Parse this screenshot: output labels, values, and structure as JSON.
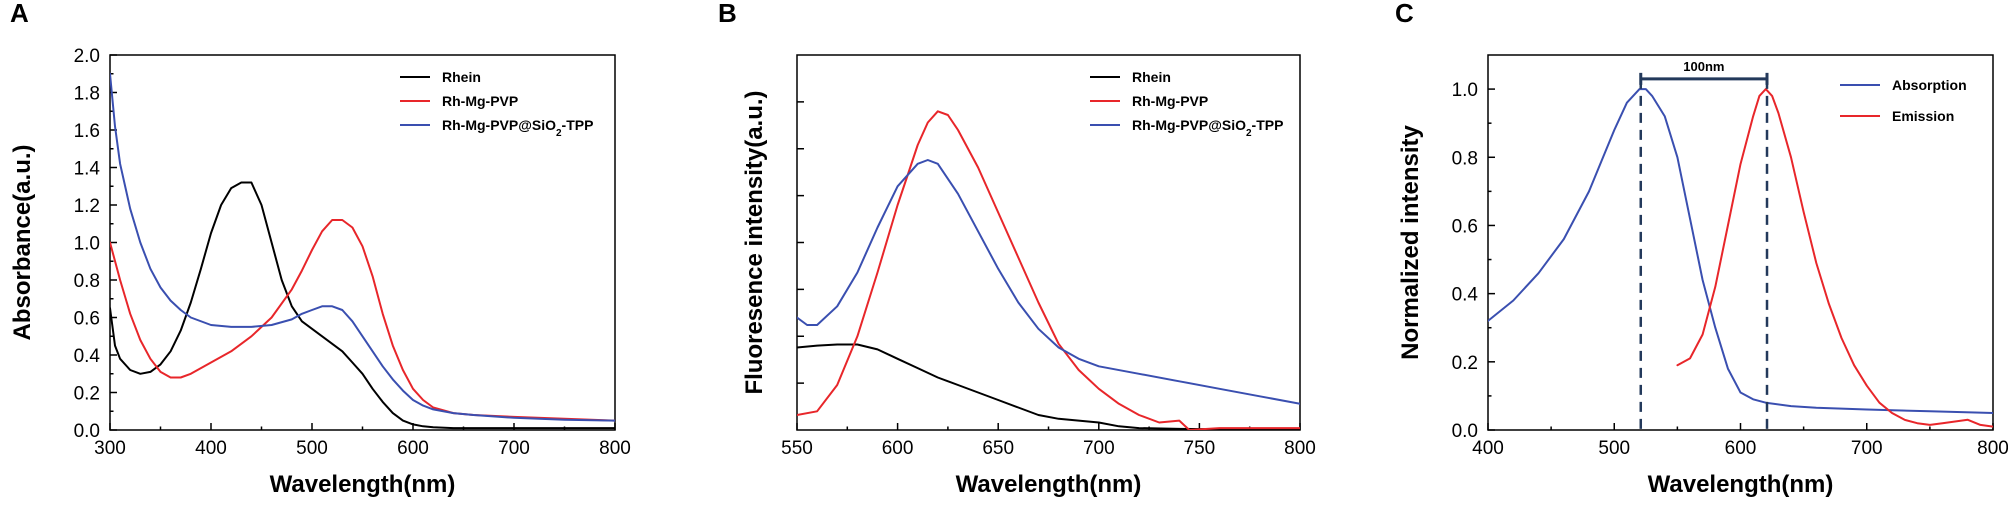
{
  "chart_data": [
    {
      "panel": "A",
      "type": "line",
      "title": "",
      "xlabel": "Wavelength(nm)",
      "ylabel": "Absorbance(a.u.)",
      "xlim": [
        300,
        800
      ],
      "ylim": [
        0,
        2.0
      ],
      "xticks": [
        300,
        400,
        500,
        600,
        700,
        800
      ],
      "yticks": [
        0.0,
        0.2,
        0.4,
        0.6,
        0.8,
        1.0,
        1.2,
        1.4,
        1.6,
        1.8,
        2.0
      ],
      "ytick_labels": [
        "0.0",
        "0.2",
        "0.4",
        "0.6",
        "0.8",
        "1.0",
        "1.2",
        "1.4",
        "1.6",
        "1.8",
        "2.0"
      ],
      "legend_position": "top-right",
      "series": [
        {
          "name": "Rhein",
          "label_parts": [
            "Rhein"
          ],
          "color": "#000000",
          "x": [
            300,
            305,
            310,
            320,
            330,
            340,
            350,
            360,
            370,
            380,
            390,
            400,
            410,
            420,
            430,
            440,
            450,
            460,
            470,
            480,
            490,
            500,
            510,
            520,
            530,
            540,
            550,
            560,
            570,
            580,
            590,
            600,
            610,
            620,
            640,
            660,
            700,
            750,
            800
          ],
          "y": [
            0.65,
            0.45,
            0.38,
            0.32,
            0.3,
            0.31,
            0.35,
            0.42,
            0.53,
            0.68,
            0.86,
            1.05,
            1.2,
            1.29,
            1.32,
            1.32,
            1.2,
            1.0,
            0.8,
            0.66,
            0.58,
            0.54,
            0.5,
            0.46,
            0.42,
            0.36,
            0.3,
            0.22,
            0.15,
            0.09,
            0.05,
            0.03,
            0.02,
            0.015,
            0.01,
            0.01,
            0.01,
            0.01,
            0.01
          ]
        },
        {
          "name": "Rh-Mg-PVP",
          "label_parts": [
            "Rh-Mg-PVP"
          ],
          "color": "#e8262a",
          "x": [
            300,
            310,
            320,
            330,
            340,
            350,
            360,
            370,
            380,
            400,
            420,
            440,
            460,
            480,
            490,
            500,
            510,
            520,
            530,
            540,
            550,
            560,
            570,
            580,
            590,
            600,
            610,
            620,
            640,
            660,
            700,
            750,
            800
          ],
          "y": [
            1.0,
            0.8,
            0.62,
            0.48,
            0.38,
            0.31,
            0.28,
            0.28,
            0.3,
            0.36,
            0.42,
            0.5,
            0.6,
            0.75,
            0.85,
            0.96,
            1.06,
            1.12,
            1.12,
            1.08,
            0.98,
            0.82,
            0.62,
            0.45,
            0.32,
            0.22,
            0.16,
            0.12,
            0.09,
            0.08,
            0.07,
            0.06,
            0.05
          ]
        },
        {
          "name": "Rh-Mg-PVP@SiO2-TPP",
          "label_parts": [
            "Rh-Mg-PVP@SiO",
            "2",
            "-TPP"
          ],
          "color": "#3a4fb0",
          "x": [
            300,
            305,
            310,
            320,
            330,
            340,
            350,
            360,
            370,
            380,
            400,
            420,
            440,
            460,
            480,
            490,
            500,
            510,
            520,
            530,
            540,
            550,
            560,
            570,
            580,
            590,
            600,
            610,
            620,
            640,
            660,
            700,
            750,
            800
          ],
          "y": [
            1.9,
            1.62,
            1.42,
            1.18,
            1.0,
            0.86,
            0.76,
            0.69,
            0.64,
            0.6,
            0.56,
            0.55,
            0.55,
            0.56,
            0.59,
            0.62,
            0.64,
            0.66,
            0.66,
            0.64,
            0.58,
            0.5,
            0.42,
            0.34,
            0.27,
            0.21,
            0.16,
            0.13,
            0.11,
            0.09,
            0.08,
            0.065,
            0.055,
            0.05
          ]
        }
      ]
    },
    {
      "panel": "B",
      "type": "line",
      "title": "",
      "xlabel": "Wavelength(nm)",
      "ylabel": "Fluoresence intensity(a.u.)",
      "xlim": [
        550,
        800
      ],
      "ylim": [
        0,
        1.0
      ],
      "xticks": [
        550,
        600,
        650,
        700,
        750,
        800
      ],
      "yticks_minor": [
        0.125,
        0.25,
        0.375,
        0.5,
        0.625,
        0.75,
        0.875
      ],
      "ytick_labels": [],
      "legend_position": "top-right",
      "series": [
        {
          "name": "Rhein",
          "label_parts": [
            "Rhein"
          ],
          "color": "#000000",
          "x": [
            550,
            560,
            570,
            580,
            590,
            600,
            610,
            620,
            630,
            640,
            650,
            660,
            670,
            680,
            690,
            700,
            710,
            720,
            740,
            760,
            800
          ],
          "y": [
            0.22,
            0.225,
            0.228,
            0.228,
            0.215,
            0.19,
            0.165,
            0.14,
            0.12,
            0.1,
            0.08,
            0.06,
            0.04,
            0.03,
            0.025,
            0.02,
            0.01,
            0.005,
            0.003,
            0.002,
            0.002
          ]
        },
        {
          "name": "Rh-Mg-PVP",
          "label_parts": [
            "Rh-Mg-PVP"
          ],
          "color": "#e8262a",
          "x": [
            550,
            560,
            570,
            580,
            590,
            600,
            605,
            610,
            615,
            620,
            625,
            630,
            640,
            650,
            660,
            670,
            680,
            690,
            700,
            710,
            720,
            730,
            740,
            745,
            760,
            800
          ],
          "y": [
            0.04,
            0.05,
            0.12,
            0.25,
            0.42,
            0.6,
            0.68,
            0.76,
            0.82,
            0.85,
            0.84,
            0.8,
            0.7,
            0.58,
            0.46,
            0.34,
            0.23,
            0.16,
            0.11,
            0.07,
            0.04,
            0.02,
            0.025,
            0.0,
            0.005,
            0.005
          ]
        },
        {
          "name": "Rh-Mg-PVP@SiO2-TPP",
          "label_parts": [
            "Rh-Mg-PVP@SiO",
            "2",
            "-TPP"
          ],
          "color": "#3a4fb0",
          "x": [
            550,
            555,
            560,
            570,
            580,
            590,
            600,
            610,
            615,
            620,
            630,
            640,
            650,
            660,
            670,
            680,
            690,
            700,
            720,
            740,
            760,
            780,
            800
          ],
          "y": [
            0.3,
            0.28,
            0.28,
            0.33,
            0.42,
            0.54,
            0.65,
            0.71,
            0.72,
            0.71,
            0.63,
            0.53,
            0.43,
            0.34,
            0.27,
            0.22,
            0.19,
            0.17,
            0.15,
            0.13,
            0.11,
            0.09,
            0.07
          ]
        }
      ]
    },
    {
      "panel": "C",
      "type": "line",
      "title": "",
      "xlabel": "Wavelength(nm)",
      "ylabel": "Normalized intensity",
      "xlim": [
        400,
        800
      ],
      "ylim": [
        0,
        1.1
      ],
      "xticks": [
        400,
        500,
        600,
        700,
        800
      ],
      "yticks": [
        0.0,
        0.2,
        0.4,
        0.6,
        0.8,
        1.0
      ],
      "ytick_labels": [
        "0.0",
        "0.2",
        "0.4",
        "0.6",
        "0.8",
        "1.0"
      ],
      "legend_position": "top-right",
      "annotation": {
        "text": "100nm",
        "x_start": 521,
        "x_end": 621,
        "y": 1.03
      },
      "series": [
        {
          "name": "Absorption",
          "label_parts": [
            "Absorption"
          ],
          "color": "#3a4fb0",
          "x": [
            400,
            420,
            440,
            460,
            480,
            490,
            500,
            510,
            520,
            525,
            530,
            540,
            550,
            560,
            570,
            580,
            590,
            600,
            610,
            620,
            640,
            660,
            700,
            750,
            800
          ],
          "y": [
            0.32,
            0.38,
            0.46,
            0.56,
            0.7,
            0.79,
            0.88,
            0.96,
            1.0,
            1.0,
            0.98,
            0.92,
            0.8,
            0.62,
            0.44,
            0.3,
            0.18,
            0.11,
            0.09,
            0.08,
            0.07,
            0.065,
            0.06,
            0.055,
            0.05
          ]
        },
        {
          "name": "Emission",
          "label_parts": [
            "Emission"
          ],
          "color": "#e8262a",
          "x": [
            550,
            560,
            570,
            580,
            590,
            600,
            610,
            615,
            620,
            625,
            630,
            640,
            650,
            660,
            670,
            680,
            690,
            700,
            710,
            720,
            730,
            740,
            750,
            760,
            770,
            780,
            790,
            800
          ],
          "y": [
            0.19,
            0.21,
            0.28,
            0.42,
            0.6,
            0.78,
            0.92,
            0.98,
            1.0,
            0.98,
            0.93,
            0.8,
            0.64,
            0.49,
            0.37,
            0.27,
            0.19,
            0.13,
            0.08,
            0.05,
            0.03,
            0.02,
            0.015,
            0.02,
            0.025,
            0.03,
            0.015,
            0.01
          ]
        }
      ]
    }
  ]
}
